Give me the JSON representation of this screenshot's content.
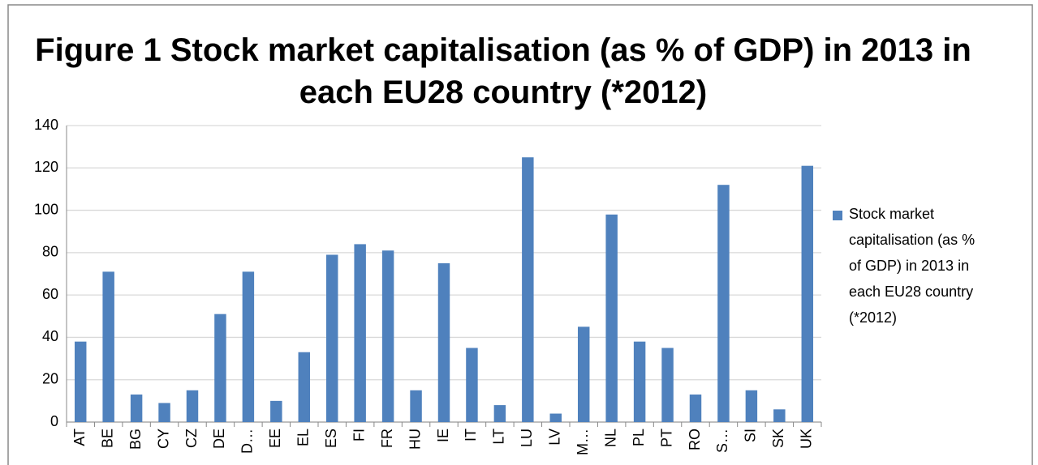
{
  "chart_data": {
    "type": "bar",
    "title": "Figure 1 Stock market capitalisation (as % of GDP) in 2013 in each EU28 country (*2012)",
    "categories": [
      "AT",
      "BE",
      "BG",
      "CY",
      "CZ",
      "DE",
      "D…",
      "EE",
      "EL",
      "ES",
      "FI",
      "FR",
      "HU",
      "IE",
      "IT",
      "LT",
      "LU",
      "LV",
      "M…",
      "NL",
      "PL",
      "PT",
      "RO",
      "S…",
      "SI",
      "SK",
      "UK"
    ],
    "series": [
      {
        "name": "Stock market capitalisation (as % of GDP) in 2013 in each EU28 country (*2012)",
        "color": "#4f81bd",
        "values": [
          38,
          71,
          13,
          9,
          15,
          51,
          71,
          10,
          33,
          79,
          84,
          81,
          15,
          75,
          35,
          8,
          125,
          4,
          45,
          98,
          38,
          35,
          13,
          112,
          15,
          6,
          121
        ]
      }
    ],
    "ylim": [
      0,
      140
    ],
    "yticks": [
      0,
      20,
      40,
      60,
      80,
      100,
      120,
      140
    ],
    "grid": true,
    "legend": "right"
  }
}
